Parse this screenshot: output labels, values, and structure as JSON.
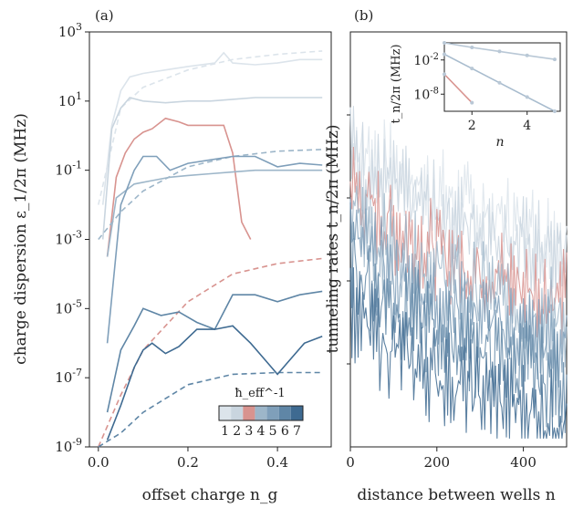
{
  "figure": {
    "panel_a_label": "(a)",
    "panel_b_label": "(b)",
    "colorbar_title": "ħ_eff^-1",
    "colorbar_ticks": [
      "1",
      "2",
      "3",
      "4",
      "5",
      "6",
      "7"
    ],
    "colors": [
      "#dce4eb",
      "#c9d5df",
      "#d8938f",
      "#9db6c9",
      "#7f9fba",
      "#5f86a6",
      "#3e6a91"
    ]
  },
  "chart_data": [
    {
      "type": "line",
      "panel": "a",
      "xlabel": "offset charge n_g",
      "ylabel": "charge dispersion ε_1/2π (MHz)",
      "xlim": [
        -0.02,
        0.52
      ],
      "ylim_log10": [
        -9,
        3
      ],
      "yscale": "log",
      "xticks": [
        "0.0",
        "0.2",
        "0.4"
      ],
      "yticks": [
        "10^-9",
        "10^-7",
        "10^-5",
        "10^-3",
        "10^-1",
        "10^1",
        "10^3"
      ],
      "series": [
        {
          "level": 1,
          "style": "solid",
          "x": [
            0.01,
            0.03,
            0.05,
            0.07,
            0.1,
            0.15,
            0.2,
            0.26,
            0.28,
            0.3,
            0.35,
            0.4,
            0.45,
            0.5
          ],
          "log10_y": [
            -2,
            0.3,
            1.3,
            1.7,
            1.8,
            1.9,
            2.0,
            2.1,
            2.4,
            2.1,
            2.05,
            2.1,
            2.2,
            2.2
          ]
        },
        {
          "level": 1,
          "style": "dashed",
          "x": [
            0.0,
            0.05,
            0.1,
            0.2,
            0.3,
            0.4,
            0.5
          ],
          "log10_y": [
            -2,
            0.8,
            1.4,
            1.9,
            2.2,
            2.35,
            2.45
          ]
        },
        {
          "level": 2,
          "style": "solid",
          "x": [
            0.01,
            0.03,
            0.05,
            0.07,
            0.1,
            0.15,
            0.2,
            0.25,
            0.3,
            0.35,
            0.4,
            0.45,
            0.5
          ],
          "log10_y": [
            -3,
            0.2,
            0.8,
            1.1,
            1.0,
            0.95,
            1.0,
            1.0,
            1.05,
            1.1,
            1.1,
            1.1,
            1.1
          ]
        },
        {
          "level": 3,
          "style": "solid",
          "x": [
            0.02,
            0.04,
            0.06,
            0.08,
            0.1,
            0.12,
            0.15,
            0.18,
            0.2,
            0.24,
            0.28,
            0.3,
            0.32,
            0.34
          ],
          "log10_y": [
            -3.5,
            -1.2,
            -0.5,
            -0.1,
            0.1,
            0.2,
            0.5,
            0.4,
            0.3,
            0.3,
            0.3,
            -0.5,
            -2.5,
            -3
          ]
        },
        {
          "level": 3,
          "style": "dashed",
          "x": [
            0.0,
            0.05,
            0.1,
            0.2,
            0.3,
            0.4,
            0.5
          ],
          "log10_y": [
            -9,
            -7.5,
            -6.2,
            -4.8,
            -4.0,
            -3.7,
            -3.55
          ]
        },
        {
          "level": 4,
          "style": "solid",
          "x": [
            0.02,
            0.04,
            0.08,
            0.12,
            0.16,
            0.2,
            0.25,
            0.3,
            0.35,
            0.4,
            0.45,
            0.5
          ],
          "log10_y": [
            -3.5,
            -1.8,
            -1.4,
            -1.3,
            -1.2,
            -1.15,
            -1.1,
            -1.05,
            -1.0,
            -1.0,
            -1.0,
            -1.0
          ]
        },
        {
          "level": 4,
          "style": "dashed",
          "x": [
            0.0,
            0.05,
            0.1,
            0.2,
            0.3,
            0.4,
            0.5
          ],
          "log10_y": [
            -3,
            -2.2,
            -1.6,
            -0.9,
            -0.6,
            -0.45,
            -0.4
          ]
        },
        {
          "level": 5,
          "style": "solid",
          "x": [
            0.02,
            0.05,
            0.08,
            0.1,
            0.13,
            0.16,
            0.2,
            0.25,
            0.3,
            0.35,
            0.4,
            0.45,
            0.5
          ],
          "log10_y": [
            -6,
            -2,
            -1.0,
            -0.6,
            -0.6,
            -1.0,
            -0.8,
            -0.7,
            -0.6,
            -0.6,
            -0.9,
            -0.8,
            -0.85
          ]
        },
        {
          "level": 6,
          "style": "solid",
          "x": [
            0.02,
            0.05,
            0.08,
            0.1,
            0.14,
            0.18,
            0.22,
            0.26,
            0.3,
            0.35,
            0.4,
            0.45,
            0.5
          ],
          "log10_y": [
            -8,
            -6.2,
            -5.5,
            -5.0,
            -5.2,
            -5.1,
            -5.4,
            -5.6,
            -4.6,
            -4.6,
            -4.8,
            -4.6,
            -4.5
          ]
        },
        {
          "level": 6,
          "style": "dashed",
          "x": [
            0.0,
            0.05,
            0.1,
            0.2,
            0.3,
            0.4,
            0.5
          ],
          "log10_y": [
            -9,
            -8.6,
            -8.0,
            -7.2,
            -6.9,
            -6.85,
            -6.85
          ]
        },
        {
          "level": 7,
          "style": "solid",
          "x": [
            0.02,
            0.05,
            0.08,
            0.1,
            0.12,
            0.15,
            0.18,
            0.22,
            0.26,
            0.3,
            0.34,
            0.38,
            0.4,
            0.42,
            0.46,
            0.5
          ],
          "log10_y": [
            -8.8,
            -7.8,
            -6.7,
            -6.2,
            -6.0,
            -6.3,
            -6.1,
            -5.6,
            -5.6,
            -5.5,
            -6.0,
            -6.6,
            -6.9,
            -6.6,
            -6.0,
            -5.8
          ]
        }
      ]
    },
    {
      "type": "line",
      "panel": "b",
      "xlabel": "distance between wells n",
      "ylabel": "tunneling rates t_n/2π (MHz)",
      "xlim": [
        0,
        500
      ],
      "xticks": [
        "0",
        "200",
        "400"
      ],
      "yscale": "log",
      "series_bands_log10": [
        {
          "level": 1,
          "start": 1.2,
          "end": -1.6
        },
        {
          "level": 2,
          "start": 0.8,
          "end": -2.0
        },
        {
          "level": 3,
          "start": 0.0,
          "end": -3.0
        },
        {
          "level": 4,
          "start": -0.6,
          "end": -3.5
        },
        {
          "level": 5,
          "start": -1.2,
          "end": -4.2
        },
        {
          "level": 6,
          "start": -1.8,
          "end": -5.0
        },
        {
          "level": 7,
          "start": -3.0,
          "end": -6.0
        }
      ]
    },
    {
      "type": "line",
      "panel": "b-inset",
      "xlabel": "n",
      "ylabel": "t_n/2π (MHz)",
      "xlim": [
        1,
        5
      ],
      "xticks": [
        "2",
        "4"
      ],
      "yticks": [
        "10^-2",
        "10^-8"
      ],
      "ylim_log10": [
        -11,
        1
      ],
      "series": [
        {
          "level": 1,
          "x": [
            1,
            2,
            3,
            4,
            5
          ],
          "log10_y": [
            1.0,
            0.2,
            -0.5,
            -1.2,
            -1.9
          ]
        },
        {
          "level": 2,
          "x": [
            1,
            2,
            3,
            4,
            5
          ],
          "log10_y": [
            -1.0,
            -3.5,
            -6.0,
            -8.5,
            -11
          ]
        },
        {
          "level": 3,
          "x": [
            1,
            2,
            3,
            4,
            5
          ],
          "log10_y": [
            -4.5,
            -9.5,
            -14,
            -18,
            -22
          ]
        }
      ]
    }
  ]
}
